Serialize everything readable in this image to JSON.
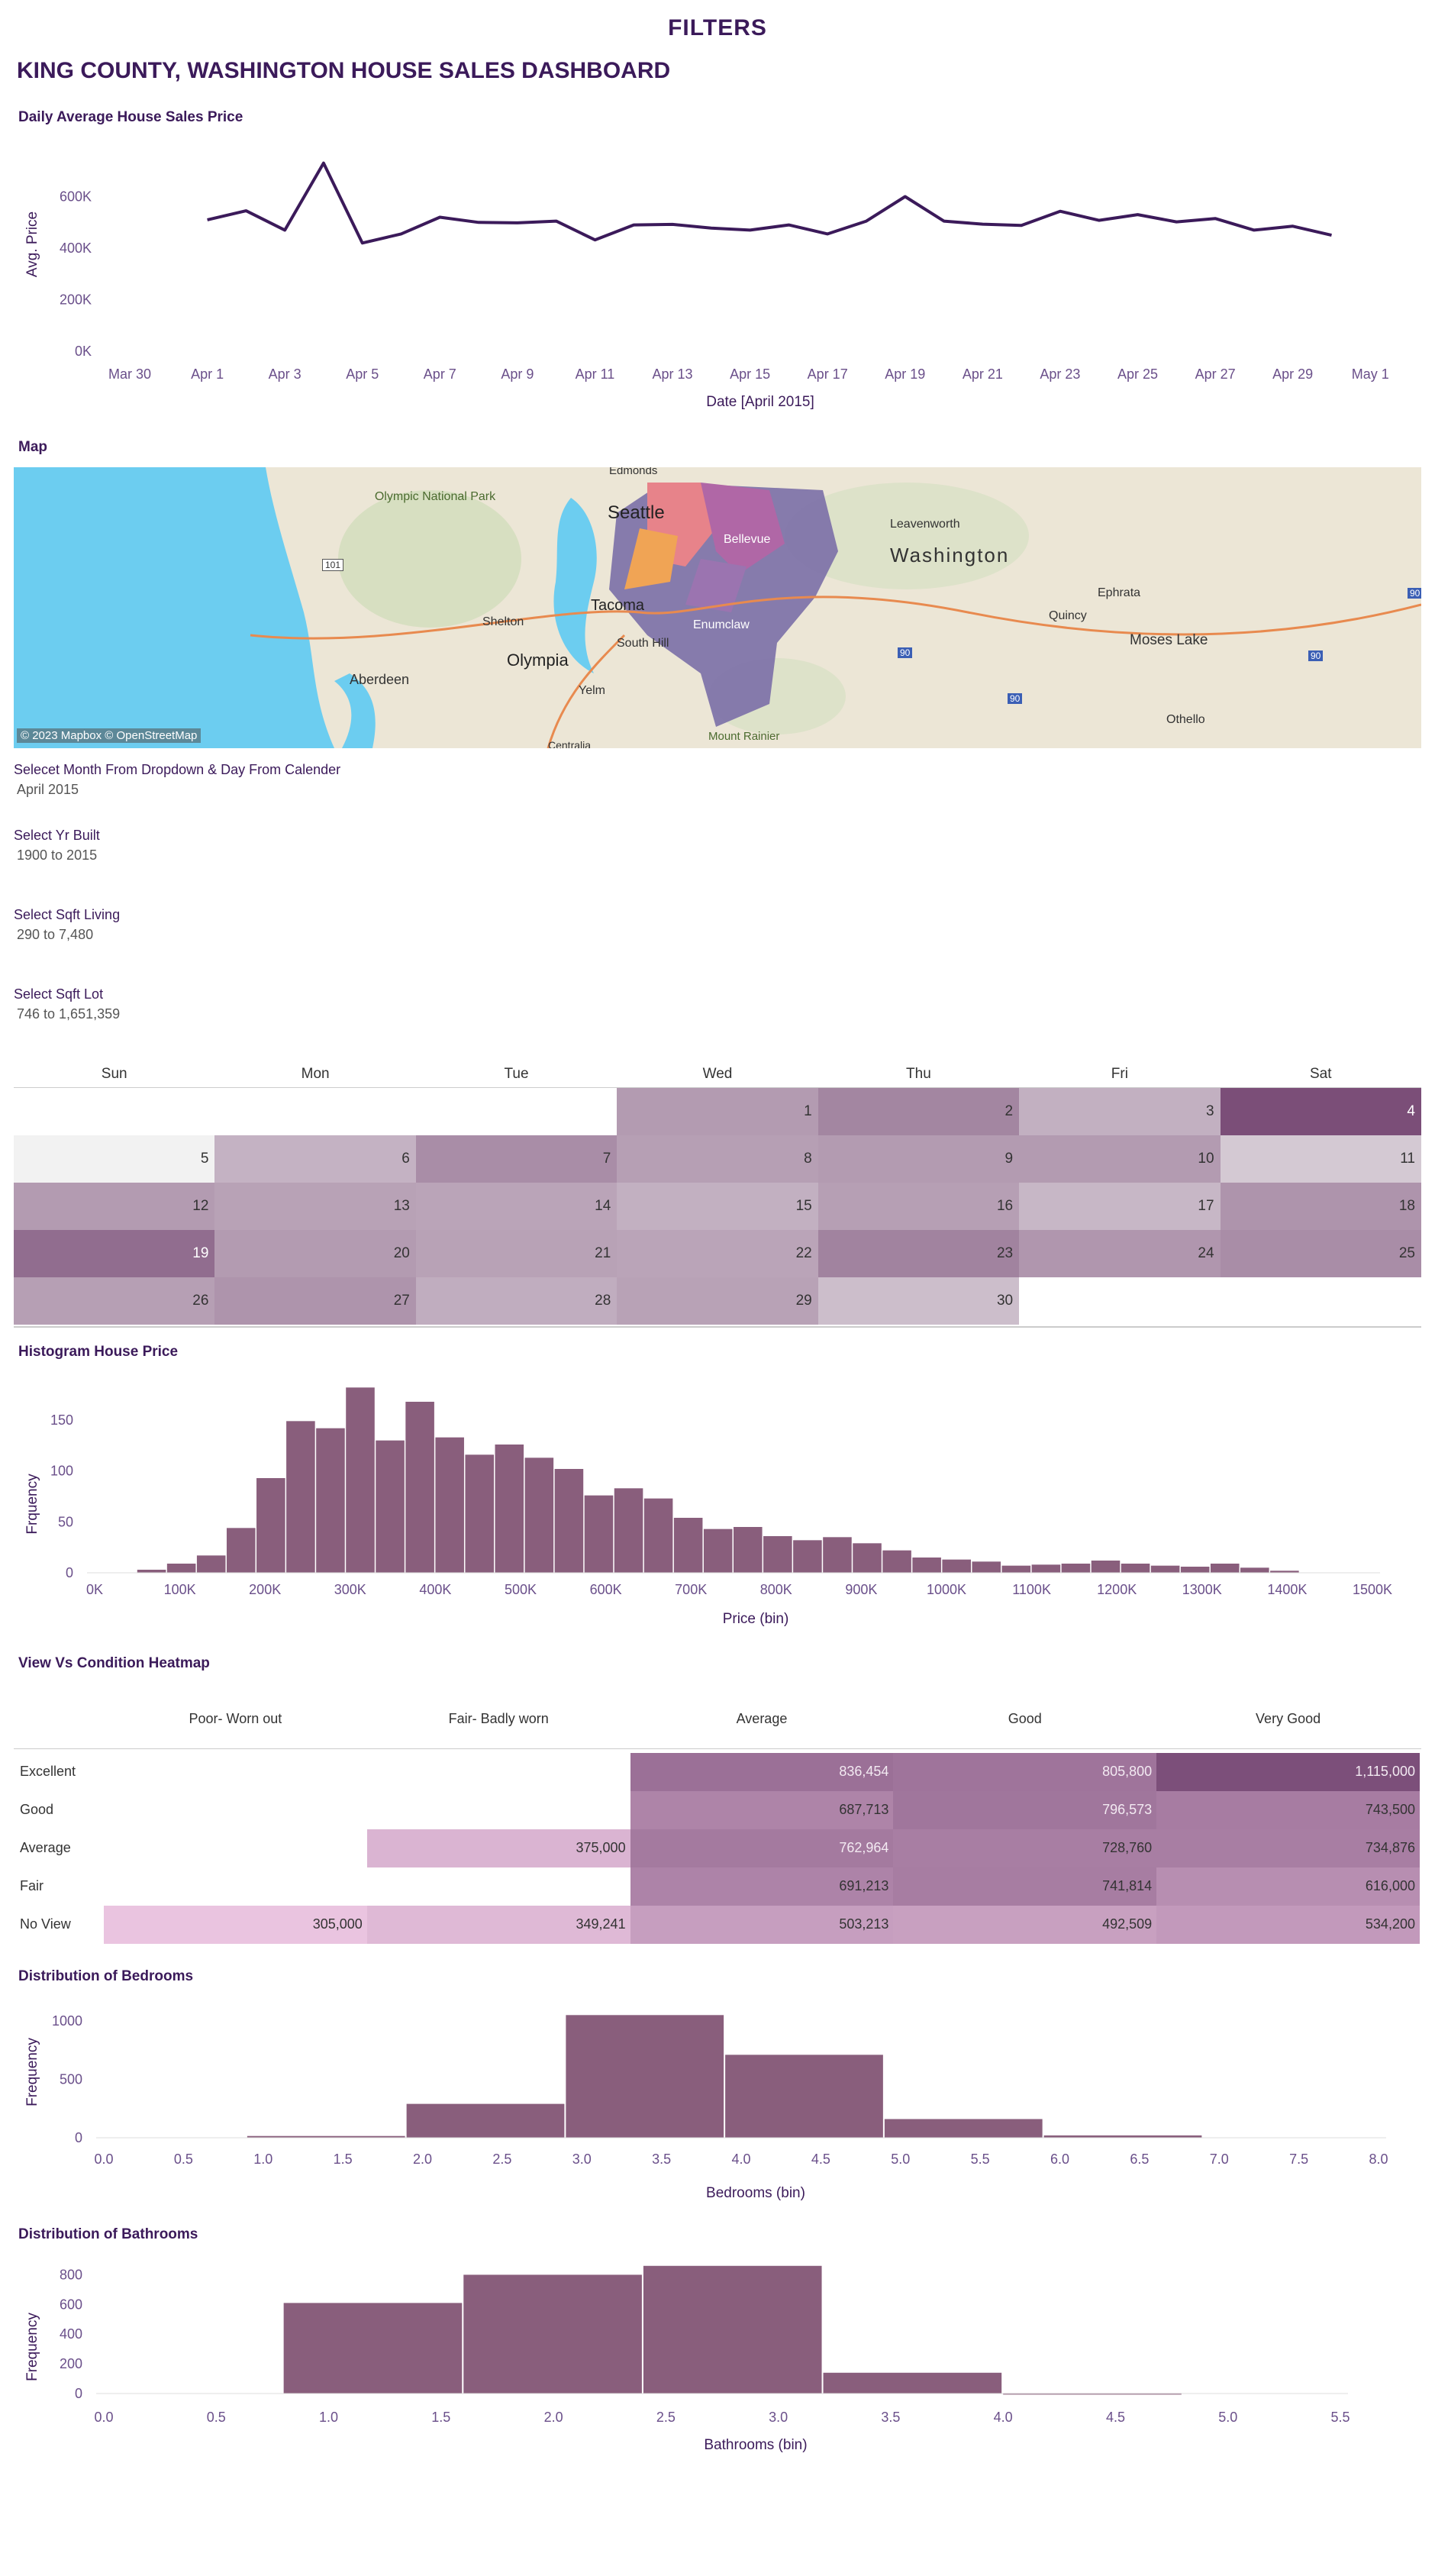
{
  "header": {
    "filters_title": "FILTERS",
    "dashboard_title": "KING COUNTY, WASHINGTON HOUSE SALES DASHBOARD"
  },
  "colors": {
    "line": "#3b1a5a",
    "bar": "#895e7c",
    "accent_text": "#3b1a5a"
  },
  "map": {
    "section_title": "Map",
    "credit": "© 2023 Mapbox © OpenStreetMap",
    "place_labels": [
      "Edmonds",
      "Seattle",
      "Bellevue",
      "Olympic National Park",
      "Leavenworth",
      "Washington",
      "Shelton",
      "Tacoma",
      "Enumclaw",
      "Ephrata",
      "Quincy",
      "Moses Lake",
      "South Hill",
      "Olympia",
      "Aberdeen",
      "Yelm",
      "Mount Rainier",
      "Othello",
      "Centralia"
    ],
    "road_shields": [
      "101",
      "90",
      "90",
      "90",
      "90"
    ]
  },
  "filters": [
    {
      "label": "Selecet Month From Dropdown & Day From Calender",
      "value": "April 2015"
    },
    {
      "label": "Select Yr Built",
      "value": "1900 to 2015"
    },
    {
      "label": "Select Sqft Living",
      "value": "290 to 7,480"
    },
    {
      "label": "Select Sqft Lot",
      "value": "746 to 1,651,359"
    }
  ],
  "calendar": {
    "days_of_week": [
      "Sun",
      "Mon",
      "Tue",
      "Wed",
      "Thu",
      "Fri",
      "Sat"
    ],
    "first_day_offset": 3,
    "days": [
      {
        "day": "1",
        "shade": 0.45
      },
      {
        "day": "2",
        "shade": 0.6
      },
      {
        "day": "3",
        "shade": 0.3
      },
      {
        "day": "4",
        "shade": 1.0
      },
      {
        "day": "5",
        "shade": 0.0
      },
      {
        "day": "6",
        "shade": 0.28
      },
      {
        "day": "7",
        "shade": 0.55
      },
      {
        "day": "8",
        "shade": 0.42
      },
      {
        "day": "9",
        "shade": 0.45
      },
      {
        "day": "10",
        "shade": 0.45
      },
      {
        "day": "11",
        "shade": 0.12
      },
      {
        "day": "12",
        "shade": 0.45
      },
      {
        "day": "13",
        "shade": 0.4
      },
      {
        "day": "14",
        "shade": 0.38
      },
      {
        "day": "15",
        "shade": 0.3
      },
      {
        "day": "16",
        "shade": 0.42
      },
      {
        "day": "17",
        "shade": 0.25
      },
      {
        "day": "18",
        "shade": 0.5
      },
      {
        "day": "19",
        "shade": 0.78
      },
      {
        "day": "20",
        "shade": 0.45
      },
      {
        "day": "21",
        "shade": 0.4
      },
      {
        "day": "22",
        "shade": 0.38
      },
      {
        "day": "23",
        "shade": 0.62
      },
      {
        "day": "24",
        "shade": 0.48
      },
      {
        "day": "25",
        "shade": 0.55
      },
      {
        "day": "26",
        "shade": 0.42
      },
      {
        "day": "27",
        "shade": 0.5
      },
      {
        "day": "28",
        "shade": 0.32
      },
      {
        "day": "29",
        "shade": 0.4
      },
      {
        "day": "30",
        "shade": 0.2
      }
    ]
  },
  "chart_data": [
    {
      "type": "line",
      "title": "Daily Average House Sales Price",
      "xlabel": "Date [April 2015]",
      "ylabel": "Avg. Price",
      "y_ticks": [
        "0K",
        "200K",
        "400K",
        "600K"
      ],
      "ylim": [
        0,
        800000
      ],
      "x_ticks": [
        "Mar 30",
        "Apr 1",
        "Apr 3",
        "Apr 5",
        "Apr 7",
        "Apr 9",
        "Apr 11",
        "Apr 13",
        "Apr 15",
        "Apr 17",
        "Apr 19",
        "Apr 21",
        "Apr 23",
        "Apr 25",
        "Apr 27",
        "Apr 29",
        "May 1"
      ],
      "x": [
        "Apr 1",
        "Apr 2",
        "Apr 3",
        "Apr 4",
        "Apr 5",
        "Apr 6",
        "Apr 7",
        "Apr 8",
        "Apr 9",
        "Apr 10",
        "Apr 11",
        "Apr 12",
        "Apr 13",
        "Apr 14",
        "Apr 15",
        "Apr 16",
        "Apr 17",
        "Apr 18",
        "Apr 19",
        "Apr 20",
        "Apr 21",
        "Apr 22",
        "Apr 23",
        "Apr 24",
        "Apr 25",
        "Apr 26",
        "Apr 27",
        "Apr 28",
        "Apr 29",
        "Apr 30"
      ],
      "values": [
        510000,
        545000,
        470000,
        730000,
        420000,
        455000,
        520000,
        500000,
        498000,
        505000,
        432000,
        490000,
        492000,
        478000,
        470000,
        490000,
        455000,
        505000,
        600000,
        505000,
        493000,
        488000,
        543000,
        508000,
        530000,
        502000,
        515000,
        470000,
        485000,
        450000
      ]
    },
    {
      "type": "bar",
      "title": "Histogram House Price",
      "xlabel": "Price (bin)",
      "ylabel": "Frquency",
      "y_ticks": [
        "0",
        "50",
        "100",
        "150"
      ],
      "ylim": [
        0,
        180
      ],
      "x_ticks": [
        "0K",
        "100K",
        "200K",
        "300K",
        "400K",
        "500K",
        "600K",
        "700K",
        "800K",
        "900K",
        "1000K",
        "1100K",
        "1200K",
        "1300K",
        "1400K",
        "1500K"
      ],
      "xlim": [
        0,
        1500000
      ],
      "bin_start": 50000,
      "bin_width": 35000,
      "values": [
        3,
        9,
        17,
        44,
        93,
        149,
        142,
        182,
        130,
        168,
        133,
        116,
        126,
        113,
        102,
        76,
        83,
        73,
        54,
        43,
        45,
        36,
        32,
        35,
        29,
        22,
        15,
        13,
        11,
        7,
        8,
        9,
        12,
        9,
        7,
        6,
        9,
        5,
        2
      ]
    },
    {
      "type": "heatmap",
      "title": "View Vs Condition Heatmap",
      "columns": [
        "Poor- Worn out",
        "Fair- Badly worn",
        "Average",
        "Good",
        "Very Good"
      ],
      "rows": [
        {
          "name": "Excellent",
          "values": [
            "",
            "",
            "836,454",
            "805,800",
            "1,115,000"
          ],
          "numbers": [
            null,
            null,
            836454,
            805800,
            1115000
          ]
        },
        {
          "name": "Good",
          "values": [
            "",
            "",
            "687,713",
            "796,573",
            "743,500"
          ],
          "numbers": [
            null,
            null,
            687713,
            796573,
            743500
          ]
        },
        {
          "name": "Average",
          "values": [
            "",
            "375,000",
            "762,964",
            "728,760",
            "734,876"
          ],
          "numbers": [
            null,
            375000,
            762964,
            728760,
            734876
          ]
        },
        {
          "name": "Fair",
          "values": [
            "",
            "",
            "691,213",
            "741,814",
            "616,000"
          ],
          "numbers": [
            null,
            null,
            691213,
            741814,
            616000
          ]
        },
        {
          "name": "No View",
          "values": [
            "305,000",
            "349,241",
            "503,213",
            "492,509",
            "534,200"
          ],
          "numbers": [
            305000,
            349241,
            503213,
            492509,
            534200
          ]
        }
      ]
    },
    {
      "type": "bar",
      "title": "Distribution of Bedrooms",
      "xlabel": "Bedrooms (bin)",
      "ylabel": "Frequency",
      "y_ticks": [
        "0",
        "500",
        "1000"
      ],
      "ylim": [
        0,
        1150
      ],
      "x_ticks": [
        "0.0",
        "0.5",
        "1.0",
        "1.5",
        "2.0",
        "2.5",
        "3.0",
        "3.5",
        "4.0",
        "4.5",
        "5.0",
        "5.5",
        "6.0",
        "6.5",
        "7.0",
        "7.5",
        "8.0"
      ],
      "xlim": [
        0,
        8
      ],
      "bins": [
        [
          0.9,
          1.9,
          15
        ],
        [
          1.9,
          2.9,
          290
        ],
        [
          2.9,
          3.9,
          1050
        ],
        [
          3.9,
          4.9,
          710
        ],
        [
          4.9,
          5.9,
          160
        ],
        [
          5.9,
          6.9,
          20
        ]
      ]
    },
    {
      "type": "bar",
      "title": "Distribution of Bathrooms",
      "xlabel": "Bathrooms (bin)",
      "ylabel": "Frequency",
      "y_ticks": [
        "0",
        "200",
        "400",
        "600",
        "800"
      ],
      "ylim": [
        0,
        900
      ],
      "x_ticks": [
        "0.0",
        "0.5",
        "1.0",
        "1.5",
        "2.0",
        "2.5",
        "3.0",
        "3.5",
        "4.0",
        "4.5",
        "5.0",
        "5.5"
      ],
      "xlim": [
        0,
        5.5
      ],
      "bins": [
        [
          0.8,
          1.6,
          610
        ],
        [
          1.6,
          2.4,
          800
        ],
        [
          2.4,
          3.2,
          860
        ],
        [
          3.2,
          4.0,
          140
        ],
        [
          4.0,
          4.8,
          3
        ]
      ]
    }
  ]
}
